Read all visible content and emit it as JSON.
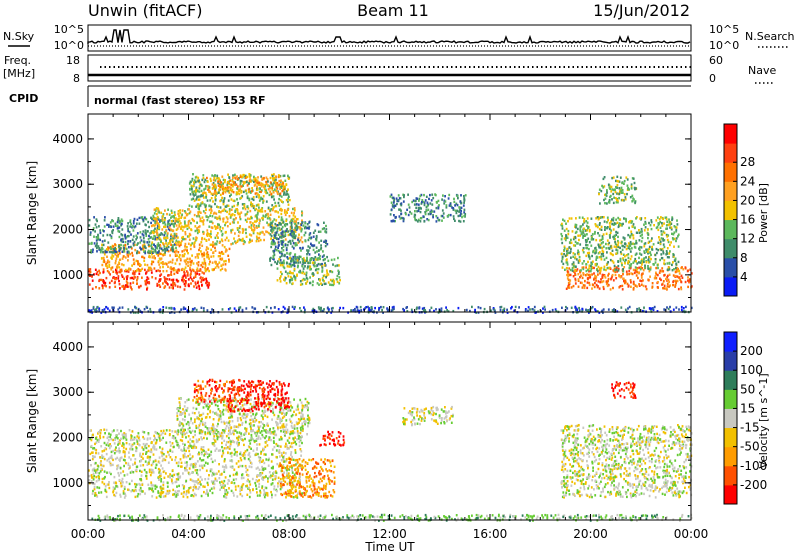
{
  "header": {
    "radar": "Unwin (fitACF)",
    "beam": "Beam 11",
    "date": "15/Jun/2012"
  },
  "top_panels": {
    "nsky_label": "N.Sky",
    "nsky_top": "10^5",
    "nsky_bottom": "10^0",
    "nsearch_label": "N.Search",
    "nsearch_top": "10^5",
    "nsearch_bottom": "10^0",
    "freq_label": "Freq.",
    "freq_unit": "[MHz]",
    "freq_top": "18",
    "freq_bottom": "8",
    "nave_label": "Nave",
    "nave_top": "60",
    "nave_bottom": "0",
    "cpid_label": "CPID",
    "mode_text": "normal (fast stereo) 153 RF"
  },
  "colors": {
    "power": [
      "#0a1cf5",
      "#2a4fa8",
      "#3f8c6a",
      "#5cb85c",
      "#f2c100",
      "#ffa020",
      "#ff7000",
      "#ff4010",
      "#ff0000"
    ],
    "velocity": [
      "#ff0000",
      "#ff5000",
      "#ff9c00",
      "#f2c000",
      "#c8c8c0",
      "#66cc33",
      "#2e7d5a",
      "#2a3ea8",
      "#1020ff"
    ]
  },
  "chart_data": [
    {
      "type": "heatmap",
      "quantity": "Power",
      "colorbar_label": "Power [dB]",
      "colorbar_ticks": [
        "4",
        "8",
        "12",
        "16",
        "20",
        "24",
        "28"
      ],
      "colorbar_range": [
        0,
        32
      ],
      "ylabel": "Slant Range [km]",
      "y_ticks": [
        "1000",
        "2000",
        "3000",
        "4000"
      ],
      "ylim": [
        180,
        4550
      ],
      "xlim": [
        0,
        24
      ],
      "regions": [
        {
          "t": [
            0,
            4.8
          ],
          "r": [
            700,
            1150
          ],
          "level": 7
        },
        {
          "t": [
            0.5,
            5.6
          ],
          "r": [
            1100,
            1700
          ],
          "level": 5
        },
        {
          "t": [
            0,
            3.5
          ],
          "r": [
            1500,
            2300
          ],
          "level": 2
        },
        {
          "t": [
            2.5,
            8.5
          ],
          "r": [
            1700,
            2500
          ],
          "level": 4
        },
        {
          "t": [
            4,
            8
          ],
          "r": [
            2500,
            3250
          ],
          "level": 3
        },
        {
          "t": [
            4.5,
            7.8
          ],
          "r": [
            2800,
            3200
          ],
          "level": 5
        },
        {
          "t": [
            7.2,
            9.5
          ],
          "r": [
            1200,
            2200
          ],
          "level": 2
        },
        {
          "t": [
            7.5,
            10
          ],
          "r": [
            800,
            1400
          ],
          "level": 3
        },
        {
          "t": [
            12,
            15
          ],
          "r": [
            2200,
            2800
          ],
          "level": 2
        },
        {
          "t": [
            19,
            24
          ],
          "r": [
            700,
            1200
          ],
          "level": 6
        },
        {
          "t": [
            18.8,
            23.5
          ],
          "r": [
            1100,
            2300
          ],
          "level": 3
        },
        {
          "t": [
            20.3,
            21.8
          ],
          "r": [
            2600,
            3200
          ],
          "level": 3
        },
        {
          "t": [
            0,
            24
          ],
          "r": [
            190,
            320
          ],
          "level": 1
        }
      ]
    },
    {
      "type": "heatmap",
      "quantity": "Velocity",
      "colorbar_label": "Velocity [m s^-1]",
      "colorbar_ticks": [
        "-200",
        "-100",
        "-50",
        "-15",
        "15",
        "50",
        "100",
        "200"
      ],
      "ylabel": "Slant Range [km]",
      "y_ticks": [
        "1000",
        "2000",
        "3000",
        "4000"
      ],
      "ylim": [
        180,
        4550
      ],
      "xlim": [
        0,
        24
      ],
      "xlabel": "Time UT",
      "x_ticks": [
        "00:00",
        "04:00",
        "08:00",
        "12:00",
        "16:00",
        "20:00",
        "00:00"
      ],
      "regions": [
        {
          "t": [
            0,
            8.5
          ],
          "r": [
            700,
            2200
          ],
          "level": 4
        },
        {
          "t": [
            3.5,
            8.8
          ],
          "r": [
            2100,
            2900
          ],
          "level": 4
        },
        {
          "t": [
            7.6,
            9.8
          ],
          "r": [
            700,
            1550
          ],
          "level": 2
        },
        {
          "t": [
            5.5,
            8
          ],
          "r": [
            2600,
            3300
          ],
          "level": 0
        },
        {
          "t": [
            4.2,
            6
          ],
          "r": [
            2800,
            3300
          ],
          "level": 1
        },
        {
          "t": [
            9.2,
            10.2
          ],
          "r": [
            1850,
            2150
          ],
          "level": 0
        },
        {
          "t": [
            12.5,
            14.5
          ],
          "r": [
            2300,
            2700
          ],
          "level": 4
        },
        {
          "t": [
            18.8,
            24
          ],
          "r": [
            700,
            2300
          ],
          "level": 4
        },
        {
          "t": [
            20.8,
            21.8
          ],
          "r": [
            2900,
            3250
          ],
          "level": 0
        },
        {
          "t": [
            0,
            24
          ],
          "r": [
            190,
            320
          ],
          "level": 5
        }
      ]
    }
  ]
}
